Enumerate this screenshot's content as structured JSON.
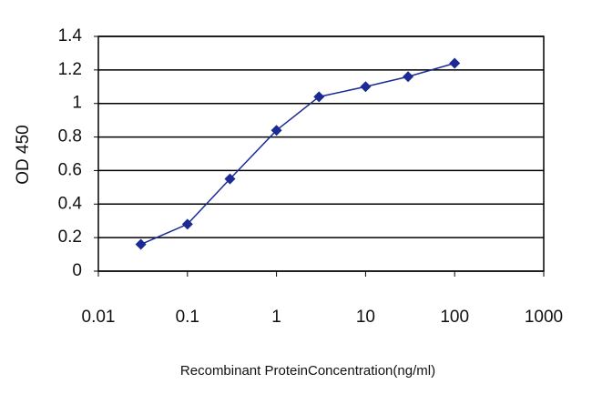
{
  "chart_data": {
    "type": "line",
    "x_label": "Recombinant ProteinConcentration(ng/ml)",
    "y_label": "OD 450",
    "x": [
      0.03,
      0.1,
      0.3,
      1,
      3,
      10,
      30,
      100
    ],
    "values": [
      0.16,
      0.28,
      0.55,
      0.84,
      1.04,
      1.1,
      1.16,
      1.24
    ],
    "color": "#1c2a94",
    "x_log": true,
    "xlim": [
      0.01,
      1000
    ],
    "xticks": [
      0.01,
      0.1,
      1,
      10,
      100,
      1000
    ],
    "ylim": [
      0,
      1.4
    ],
    "yticks": [
      0,
      0.2,
      0.4,
      0.6,
      0.8,
      1,
      1.2,
      1.4
    ],
    "grid": true
  }
}
